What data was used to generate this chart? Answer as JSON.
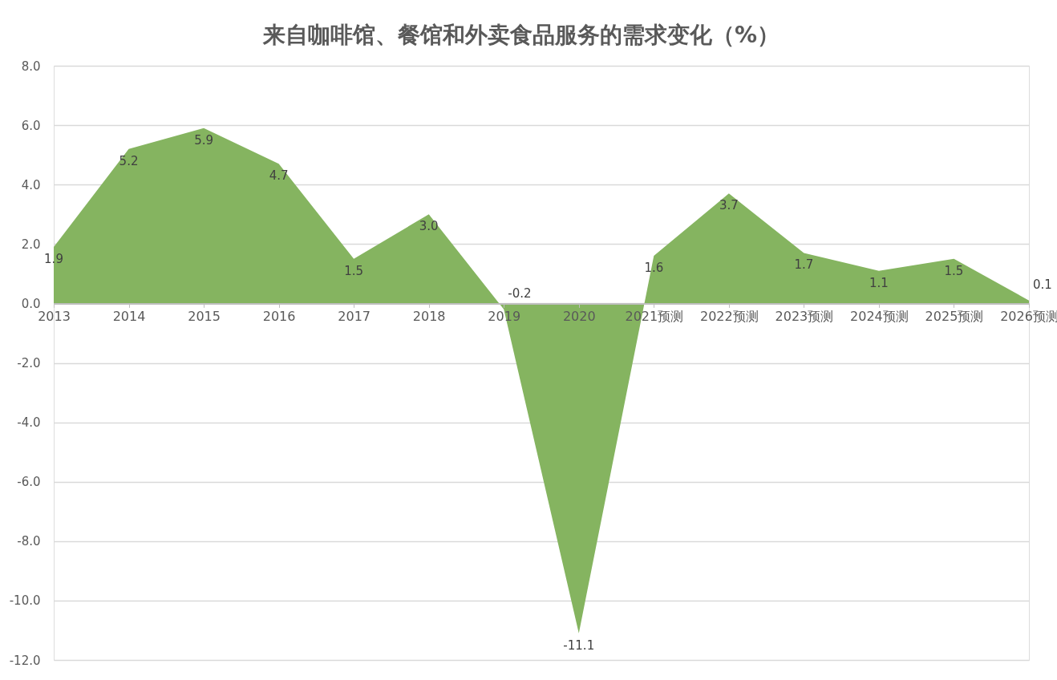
{
  "chart_data": {
    "type": "area",
    "title": "来自咖啡馆、餐馆和外卖食品服务的需求变化（%）",
    "categories": [
      "2013",
      "2014",
      "2015",
      "2016",
      "2017",
      "2018",
      "2019",
      "2020",
      "2021预测",
      "2022预测",
      "2023预测",
      "2024预测",
      "2025预测",
      "2026预测"
    ],
    "values": [
      1.9,
      5.2,
      5.9,
      4.7,
      1.5,
      3.0,
      -0.2,
      -11.1,
      1.6,
      3.7,
      1.7,
      1.1,
      1.5,
      0.1
    ],
    "value_labels": [
      "1.9",
      "5.2",
      "5.9",
      "4.7",
      "1.5",
      "3.0",
      "-0.2",
      "-11.1",
      "1.6",
      "3.7",
      "1.7",
      "1.1",
      "1.5",
      "0.1"
    ],
    "color": "#85b460",
    "ylim": [
      -12,
      8
    ],
    "yticks": [
      {
        "value": -12,
        "label": "-12.0"
      },
      {
        "value": -10,
        "label": "-10.0"
      },
      {
        "value": -8,
        "label": "-8.0"
      },
      {
        "value": -6,
        "label": "-6.0"
      },
      {
        "value": -4,
        "label": "-4.0"
      },
      {
        "value": -2,
        "label": "-2.0"
      },
      {
        "value": 0,
        "label": "0.0"
      },
      {
        "value": 2,
        "label": "2.0"
      },
      {
        "value": 4,
        "label": "4.0"
      },
      {
        "value": 6,
        "label": "6.0"
      },
      {
        "value": 8,
        "label": "8.0"
      }
    ],
    "grid": "y"
  }
}
